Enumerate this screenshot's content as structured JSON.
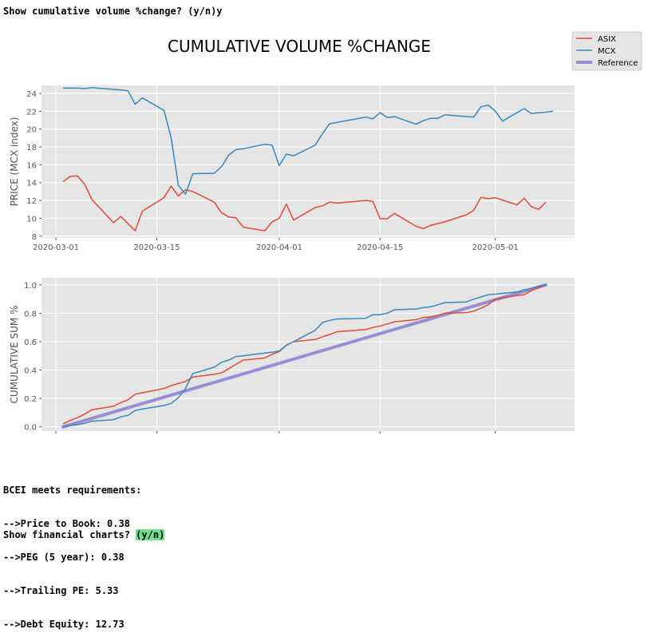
{
  "terminal": {
    "top_prompt": "Show cumulative volume %change? (y/n)y",
    "requirements": [
      "BCEI meets requirements:",
      "-->Price to Book: 0.38",
      "-->PEG (5 year): 0.38",
      "-->Trailing PE: 5.33",
      "-->Debt Equity: 12.73"
    ],
    "bottom_prompt_text": "Show financial charts? ",
    "bottom_prompt_option": "(y/n)"
  },
  "figure": {
    "title": "CUMULATIVE VOLUME %CHANGE",
    "legend": [
      "ASIX",
      "MCX",
      "Reference"
    ],
    "colors": {
      "ASIX": "#e24a33",
      "MCX": "#348abd",
      "Reference": "#988ed5",
      "background": "#e5e5e5",
      "grid": "#ffffff"
    }
  },
  "chart_data": [
    {
      "type": "line",
      "title": "",
      "xlabel": "",
      "ylabel": "PRICE (MCX index)",
      "x_ticks": [
        "2020-03-01",
        "2020-03-15",
        "2020-04-01",
        "2020-04-15",
        "2020-05-01"
      ],
      "y_ticks": [
        "8",
        "10",
        "12",
        "14",
        "16",
        "18",
        "20",
        "22",
        "24"
      ],
      "xlim": [
        "2020-02-28",
        "2020-05-12"
      ],
      "ylim": [
        7.8,
        24.9
      ],
      "grid": true,
      "legend": "top-right",
      "series": [
        {
          "name": "ASIX",
          "points": [
            [
              "2020-03-02",
              14.1
            ],
            [
              "2020-03-03",
              14.7
            ],
            [
              "2020-03-04",
              14.75
            ],
            [
              "2020-03-05",
              13.8
            ],
            [
              "2020-03-06",
              12.1
            ],
            [
              "2020-03-09",
              9.5
            ],
            [
              "2020-03-10",
              10.2
            ],
            [
              "2020-03-12",
              8.6
            ],
            [
              "2020-03-13",
              10.8
            ],
            [
              "2020-03-16",
              12.3
            ],
            [
              "2020-03-17",
              13.6
            ],
            [
              "2020-03-18",
              12.5
            ],
            [
              "2020-03-19",
              13.2
            ],
            [
              "2020-03-20",
              13.0
            ],
            [
              "2020-03-23",
              11.8
            ],
            [
              "2020-03-24",
              10.6
            ],
            [
              "2020-03-25",
              10.15
            ],
            [
              "2020-03-26",
              10.05
            ],
            [
              "2020-03-27",
              9.0
            ],
            [
              "2020-03-30",
              8.6
            ],
            [
              "2020-03-31",
              9.6
            ],
            [
              "2020-04-01",
              10.0
            ],
            [
              "2020-04-02",
              11.6
            ],
            [
              "2020-04-03",
              9.8
            ],
            [
              "2020-04-06",
              11.2
            ],
            [
              "2020-04-07",
              11.4
            ],
            [
              "2020-04-08",
              11.8
            ],
            [
              "2020-04-09",
              11.7
            ],
            [
              "2020-04-13",
              12.0
            ],
            [
              "2020-04-14",
              11.9
            ],
            [
              "2020-04-15",
              9.95
            ],
            [
              "2020-04-16",
              9.95
            ],
            [
              "2020-04-17",
              10.55
            ],
            [
              "2020-04-20",
              9.1
            ],
            [
              "2020-04-21",
              8.85
            ],
            [
              "2020-04-22",
              9.2
            ],
            [
              "2020-04-24",
              9.6
            ],
            [
              "2020-04-27",
              10.4
            ],
            [
              "2020-04-28",
              10.9
            ],
            [
              "2020-04-29",
              12.35
            ],
            [
              "2020-04-30",
              12.2
            ],
            [
              "2020-05-01",
              12.3
            ],
            [
              "2020-05-04",
              11.5
            ],
            [
              "2020-05-05",
              12.25
            ],
            [
              "2020-05-06",
              11.3
            ],
            [
              "2020-05-07",
              11.0
            ],
            [
              "2020-05-08",
              11.8
            ]
          ]
        },
        {
          "name": "MCX",
          "points": [
            [
              "2020-03-02",
              24.6
            ],
            [
              "2020-03-03",
              24.6
            ],
            [
              "2020-03-04",
              24.6
            ],
            [
              "2020-03-05",
              24.55
            ],
            [
              "2020-03-06",
              24.65
            ],
            [
              "2020-03-09",
              24.45
            ],
            [
              "2020-03-10",
              24.4
            ],
            [
              "2020-03-11",
              24.3
            ],
            [
              "2020-03-12",
              22.8
            ],
            [
              "2020-03-13",
              23.5
            ],
            [
              "2020-03-16",
              22.1
            ],
            [
              "2020-03-17",
              19.0
            ],
            [
              "2020-03-18",
              13.7
            ],
            [
              "2020-03-19",
              12.7
            ],
            [
              "2020-03-20",
              15.0
            ],
            [
              "2020-03-23",
              15.05
            ],
            [
              "2020-03-24",
              15.8
            ],
            [
              "2020-03-25",
              17.1
            ],
            [
              "2020-03-26",
              17.7
            ],
            [
              "2020-03-27",
              17.8
            ],
            [
              "2020-03-30",
              18.3
            ],
            [
              "2020-03-31",
              18.2
            ],
            [
              "2020-04-01",
              15.9
            ],
            [
              "2020-04-02",
              17.2
            ],
            [
              "2020-04-03",
              17.0
            ],
            [
              "2020-04-06",
              18.2
            ],
            [
              "2020-04-07",
              19.5
            ],
            [
              "2020-04-08",
              20.6
            ],
            [
              "2020-04-13",
              21.35
            ],
            [
              "2020-04-14",
              21.15
            ],
            [
              "2020-04-15",
              21.85
            ],
            [
              "2020-04-16",
              21.3
            ],
            [
              "2020-04-17",
              21.4
            ],
            [
              "2020-04-20",
              20.55
            ],
            [
              "2020-04-21",
              20.95
            ],
            [
              "2020-04-22",
              21.2
            ],
            [
              "2020-04-23",
              21.2
            ],
            [
              "2020-04-24",
              21.6
            ],
            [
              "2020-04-28",
              21.35
            ],
            [
              "2020-04-29",
              22.5
            ],
            [
              "2020-04-30",
              22.7
            ],
            [
              "2020-05-01",
              22.0
            ],
            [
              "2020-05-02",
              20.9
            ],
            [
              "2020-05-05",
              22.3
            ],
            [
              "2020-05-06",
              21.75
            ],
            [
              "2020-05-07",
              21.85
            ],
            [
              "2020-05-08",
              21.9
            ],
            [
              "2020-05-09",
              22.0
            ]
          ]
        }
      ]
    },
    {
      "type": "line",
      "title": "",
      "xlabel": "",
      "ylabel": "CUMULATIVE SUM %",
      "x_ticks": [
        "2020-03-01",
        "2020-03-15",
        "2020-04-01",
        "2020-04-15",
        "2020-05-01"
      ],
      "y_ticks": [
        "0.0",
        "0.2",
        "0.4",
        "0.6",
        "0.8",
        "1.0"
      ],
      "xlim": [
        "2020-02-28",
        "2020-05-12"
      ],
      "ylim": [
        -0.03,
        1.05
      ],
      "grid": true,
      "series": [
        {
          "name": "ASIX",
          "points": [
            [
              "2020-03-02",
              0.02
            ],
            [
              "2020-03-03",
              0.045
            ],
            [
              "2020-03-04",
              0.065
            ],
            [
              "2020-03-05",
              0.09
            ],
            [
              "2020-03-06",
              0.12
            ],
            [
              "2020-03-09",
              0.145
            ],
            [
              "2020-03-10",
              0.17
            ],
            [
              "2020-03-11",
              0.19
            ],
            [
              "2020-03-12",
              0.23
            ],
            [
              "2020-03-13",
              0.24
            ],
            [
              "2020-03-16",
              0.27
            ],
            [
              "2020-03-17",
              0.29
            ],
            [
              "2020-03-18",
              0.305
            ],
            [
              "2020-03-19",
              0.32
            ],
            [
              "2020-03-20",
              0.35
            ],
            [
              "2020-03-23",
              0.37
            ],
            [
              "2020-03-24",
              0.38
            ],
            [
              "2020-03-25",
              0.41
            ],
            [
              "2020-03-26",
              0.44
            ],
            [
              "2020-03-27",
              0.47
            ],
            [
              "2020-03-30",
              0.485
            ],
            [
              "2020-03-31",
              0.51
            ],
            [
              "2020-04-01",
              0.53
            ],
            [
              "2020-04-02",
              0.575
            ],
            [
              "2020-04-03",
              0.6
            ],
            [
              "2020-04-06",
              0.615
            ],
            [
              "2020-04-07",
              0.635
            ],
            [
              "2020-04-08",
              0.65
            ],
            [
              "2020-04-09",
              0.67
            ],
            [
              "2020-04-13",
              0.685
            ],
            [
              "2020-04-14",
              0.7
            ],
            [
              "2020-04-15",
              0.71
            ],
            [
              "2020-04-16",
              0.725
            ],
            [
              "2020-04-17",
              0.74
            ],
            [
              "2020-04-20",
              0.755
            ],
            [
              "2020-04-21",
              0.77
            ],
            [
              "2020-04-22",
              0.775
            ],
            [
              "2020-04-23",
              0.785
            ],
            [
              "2020-04-24",
              0.8
            ],
            [
              "2020-04-27",
              0.805
            ],
            [
              "2020-04-28",
              0.815
            ],
            [
              "2020-04-29",
              0.835
            ],
            [
              "2020-04-30",
              0.86
            ],
            [
              "2020-05-01",
              0.9
            ],
            [
              "2020-05-04",
              0.925
            ],
            [
              "2020-05-05",
              0.93
            ],
            [
              "2020-05-06",
              0.96
            ],
            [
              "2020-05-07",
              0.98
            ],
            [
              "2020-05-08",
              1.0
            ]
          ]
        },
        {
          "name": "MCX",
          "points": [
            [
              "2020-03-02",
              0.0
            ],
            [
              "2020-03-03",
              0.01
            ],
            [
              "2020-03-04",
              0.015
            ],
            [
              "2020-03-05",
              0.025
            ],
            [
              "2020-03-06",
              0.04
            ],
            [
              "2020-03-09",
              0.05
            ],
            [
              "2020-03-10",
              0.07
            ],
            [
              "2020-03-11",
              0.08
            ],
            [
              "2020-03-12",
              0.115
            ],
            [
              "2020-03-13",
              0.125
            ],
            [
              "2020-03-16",
              0.15
            ],
            [
              "2020-03-17",
              0.165
            ],
            [
              "2020-03-18",
              0.205
            ],
            [
              "2020-03-19",
              0.27
            ],
            [
              "2020-03-20",
              0.375
            ],
            [
              "2020-03-23",
              0.42
            ],
            [
              "2020-03-24",
              0.455
            ],
            [
              "2020-03-25",
              0.47
            ],
            [
              "2020-03-26",
              0.495
            ],
            [
              "2020-03-27",
              0.5
            ],
            [
              "2020-03-30",
              0.52
            ],
            [
              "2020-03-31",
              0.525
            ],
            [
              "2020-04-01",
              0.535
            ],
            [
              "2020-04-02",
              0.575
            ],
            [
              "2020-04-03",
              0.6
            ],
            [
              "2020-04-06",
              0.68
            ],
            [
              "2020-04-07",
              0.735
            ],
            [
              "2020-04-08",
              0.75
            ],
            [
              "2020-04-09",
              0.76
            ],
            [
              "2020-04-13",
              0.765
            ],
            [
              "2020-04-14",
              0.79
            ],
            [
              "2020-04-15",
              0.79
            ],
            [
              "2020-04-16",
              0.8
            ],
            [
              "2020-04-17",
              0.825
            ],
            [
              "2020-04-20",
              0.83
            ],
            [
              "2020-04-21",
              0.84
            ],
            [
              "2020-04-22",
              0.845
            ],
            [
              "2020-04-23",
              0.86
            ],
            [
              "2020-04-24",
              0.875
            ],
            [
              "2020-04-27",
              0.88
            ],
            [
              "2020-04-28",
              0.9
            ],
            [
              "2020-04-29",
              0.915
            ],
            [
              "2020-04-30",
              0.93
            ],
            [
              "2020-05-01",
              0.935
            ],
            [
              "2020-05-04",
              0.95
            ],
            [
              "2020-05-05",
              0.965
            ],
            [
              "2020-05-06",
              0.975
            ],
            [
              "2020-05-07",
              0.99
            ],
            [
              "2020-05-08",
              1.0
            ]
          ]
        },
        {
          "name": "Reference",
          "points": [
            [
              "2020-03-02",
              0.0
            ],
            [
              "2020-05-08",
              1.0
            ]
          ]
        }
      ]
    }
  ]
}
